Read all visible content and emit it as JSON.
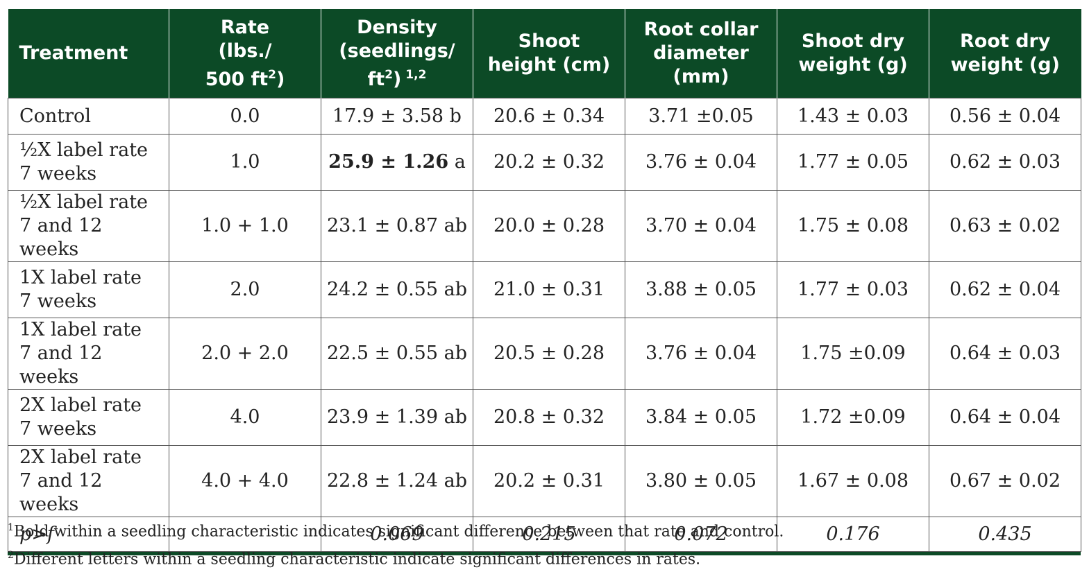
{
  "headers": [
    {
      "line1": "Treatment"
    },
    {
      "line1": "Rate",
      "line2": "(lbs./",
      "line3": "500 ft",
      "sup": "2",
      "after": ")"
    },
    {
      "line1": "Density",
      "line2": "(seedlings/",
      "line3": "ft",
      "sup": "2",
      "after": ")",
      "sup2": " 1,2"
    },
    {
      "line1": "Shoot",
      "line2": "height (cm)"
    },
    {
      "line1": "Root collar",
      "line2": "diameter",
      "line3": "(mm)"
    },
    {
      "line1": "Shoot dry",
      "line2": "weight (g)"
    },
    {
      "line1": "Root dry",
      "line2": "weight (g)"
    }
  ],
  "rows": [
    {
      "treatment": [
        "Control"
      ],
      "rate": "0.0",
      "density": "17.9 ± 3.58",
      "density_letter": "b",
      "shoot_height": "20.6 ± 0.34",
      "root_collar": "3.71 ±0.05",
      "shoot_dry": "1.43 ± 0.03",
      "root_dry": "0.56 ± 0.04"
    },
    {
      "treatment": [
        "½X label rate",
        "7 weeks"
      ],
      "rate": "1.0",
      "density": "25.9 ± 1.26",
      "density_letter": "a",
      "density_bold": true,
      "shoot_height": "20.2 ± 0.32",
      "root_collar": "3.76 ± 0.04",
      "shoot_dry": "1.77 ± 0.05",
      "root_dry": "0.62 ± 0.03"
    },
    {
      "treatment": [
        "½X label rate",
        "7 and 12 weeks"
      ],
      "rate": "1.0 + 1.0",
      "density": "23.1 ± 0.87",
      "density_letter": "ab",
      "shoot_height": "20.0 ± 0.28",
      "root_collar": "3.70 ± 0.04",
      "shoot_dry": "1.75 ± 0.08",
      "root_dry": "0.63 ± 0.02"
    },
    {
      "treatment": [
        "1X label rate",
        "7 weeks"
      ],
      "rate": "2.0",
      "density": "24.2 ± 0.55",
      "density_letter": "ab",
      "shoot_height": "21.0 ± 0.31",
      "root_collar": "3.88 ± 0.05",
      "shoot_dry": "1.77 ± 0.03",
      "root_dry": "0.62 ± 0.04"
    },
    {
      "treatment": [
        "1X label rate",
        "7 and 12 weeks"
      ],
      "rate": "2.0 + 2.0",
      "density": "22.5 ± 0.55",
      "density_letter": "ab",
      "shoot_height": "20.5 ± 0.28",
      "root_collar": "3.76 ± 0.04",
      "shoot_dry": "1.75 ±0.09",
      "root_dry": "0.64 ± 0.03"
    },
    {
      "treatment": [
        "2X label rate",
        "7 weeks"
      ],
      "rate": "4.0",
      "density": "23.9 ± 1.39",
      "density_letter": "ab",
      "shoot_height": "20.8 ± 0.32",
      "root_collar": "3.84 ± 0.05",
      "shoot_dry": "1.72 ±0.09",
      "root_dry": "0.64 ± 0.04"
    },
    {
      "treatment": [
        "2X label rate",
        "7 and 12 weeks"
      ],
      "rate": "4.0 + 4.0",
      "density": "22.8 ± 1.24",
      "density_letter": "ab",
      "shoot_height": "20.2 ± 0.31",
      "root_collar": "3.80 ± 0.05",
      "shoot_dry": "1.67 ± 0.08",
      "root_dry": "0.67 ± 0.02"
    }
  ],
  "pf_row": {
    "label": "p>f",
    "rate": "",
    "density": "0.069",
    "shoot_height": "0.215",
    "root_collar": "0.072",
    "shoot_dry": "0.176",
    "root_dry": "0.435"
  },
  "footnotes": [
    {
      "mark": "1",
      "text": "Bold within a seedling characteristic indicates significant difference between that rate and control."
    },
    {
      "mark": "2",
      "text": "Different letters within a seedling characteristic indicate significant differences in rates."
    }
  ],
  "colors": {
    "header_bg": "#0c4a26",
    "header_text": "#ffffff",
    "border": "#555555"
  }
}
